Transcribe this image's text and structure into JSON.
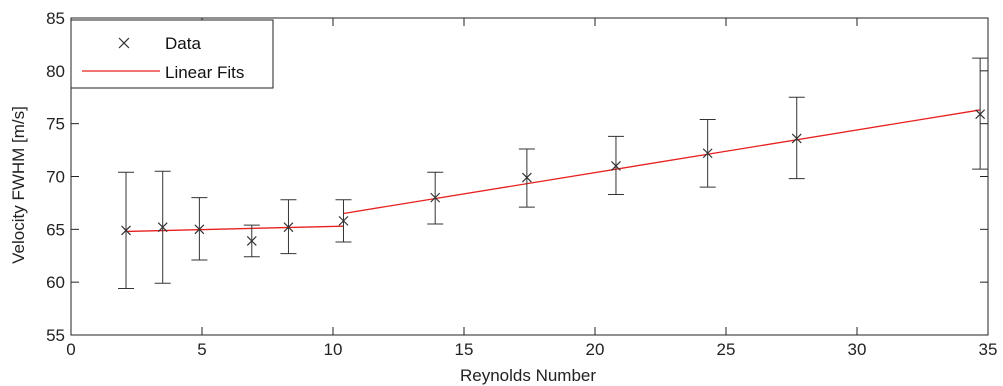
{
  "chart_data": {
    "type": "scatter",
    "title": "",
    "xlabel": "Reynolds Number",
    "ylabel": "Velocity FWHM [m/s]",
    "xlim": [
      0,
      35
    ],
    "ylim": [
      55,
      85
    ],
    "xticks": [
      0,
      5,
      10,
      15,
      20,
      25,
      30,
      35
    ],
    "yticks": [
      55,
      60,
      65,
      70,
      75,
      80,
      85
    ],
    "grid": false,
    "legend_position": "top-left",
    "colors": {
      "data": "#333333",
      "fit": "#e8201e",
      "axis": "#222222"
    },
    "series": [
      {
        "name": "Data",
        "kind": "points-with-errorbars",
        "marker": "x",
        "x": [
          2.1,
          3.5,
          4.9,
          6.9,
          8.3,
          10.4,
          13.9,
          17.4,
          20.8,
          24.3,
          27.7,
          34.7
        ],
        "y": [
          64.9,
          65.2,
          65.0,
          63.9,
          65.2,
          65.8,
          68.0,
          69.9,
          71.0,
          72.2,
          73.6,
          75.9
        ],
        "err_low": [
          59.4,
          59.9,
          62.1,
          62.4,
          62.7,
          63.8,
          65.5,
          67.1,
          68.3,
          69.0,
          69.8,
          70.7
        ],
        "err_high": [
          70.4,
          70.5,
          68.0,
          65.4,
          67.8,
          67.8,
          70.4,
          72.6,
          73.8,
          75.4,
          77.5,
          81.2
        ]
      },
      {
        "name": "Linear Fits",
        "kind": "line",
        "segments": [
          {
            "x": [
              2.1,
              10.4
            ],
            "y": [
              64.8,
              65.3
            ]
          },
          {
            "x": [
              10.4,
              34.7
            ],
            "y": [
              66.5,
              76.3
            ]
          }
        ]
      }
    ]
  }
}
